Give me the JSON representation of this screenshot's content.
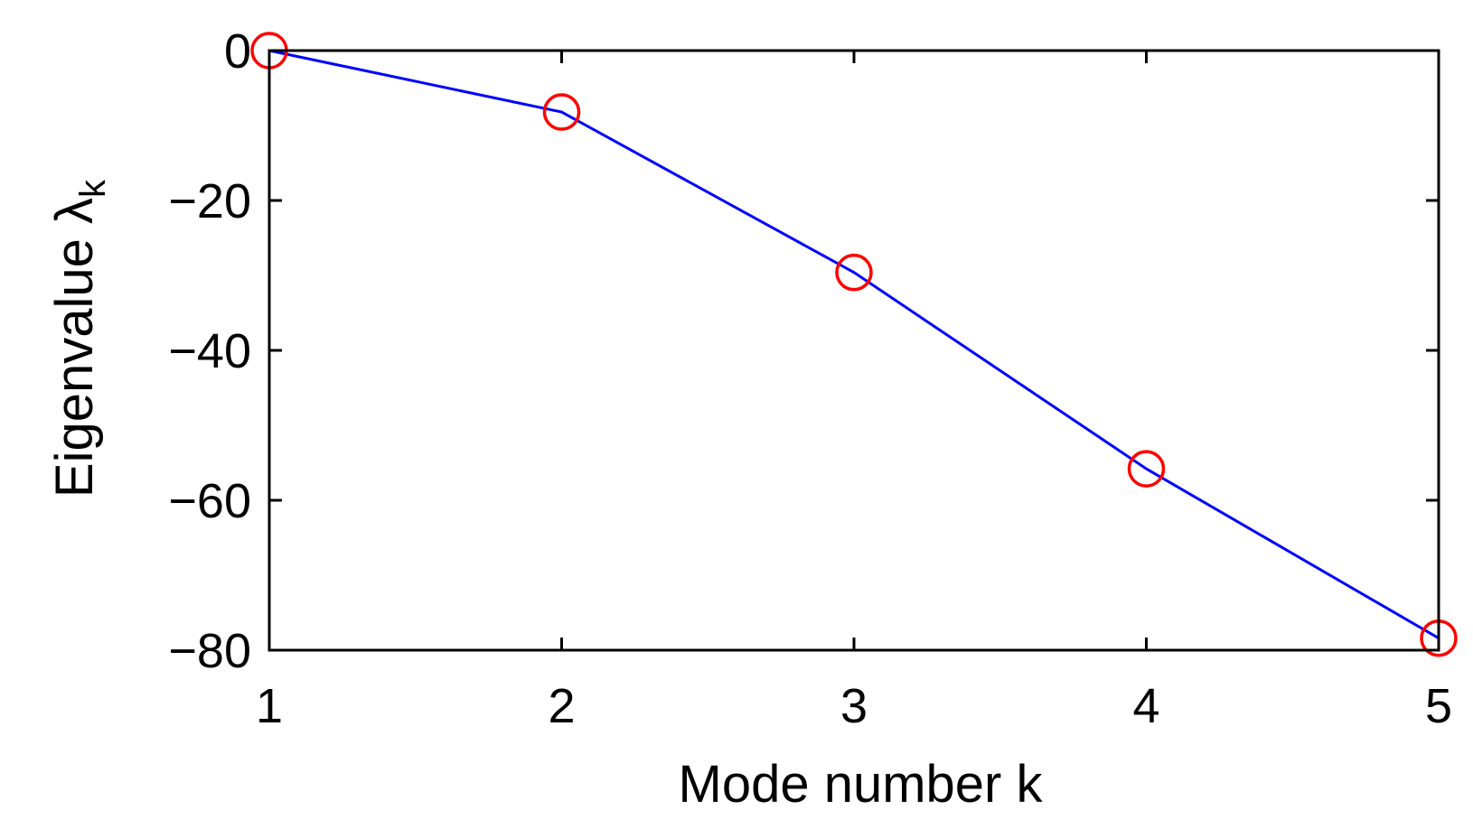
{
  "chart_data": {
    "type": "line",
    "title": "",
    "xlabel": "Mode number k",
    "ylabel": "Eigenvalue λ",
    "ylabel_sub": "k",
    "x": [
      1,
      2,
      3,
      4,
      5
    ],
    "xlim": [
      1,
      5
    ],
    "ylim": [
      -80,
      0
    ],
    "xticks": [
      1,
      2,
      3,
      4,
      5
    ],
    "xtick_labels": [
      "1",
      "2",
      "3",
      "4",
      "5"
    ],
    "yticks": [
      0,
      -20,
      -40,
      -60,
      -80
    ],
    "ytick_labels": [
      "0",
      "−20",
      "−40",
      "−60",
      "−80"
    ],
    "grid": false,
    "series": [
      {
        "values": [
          0,
          -8.2,
          -29.6,
          -55.8,
          -78.4
        ],
        "line_color": "#0000ff",
        "marker": "circle",
        "marker_color": "#ff0000"
      }
    ]
  }
}
